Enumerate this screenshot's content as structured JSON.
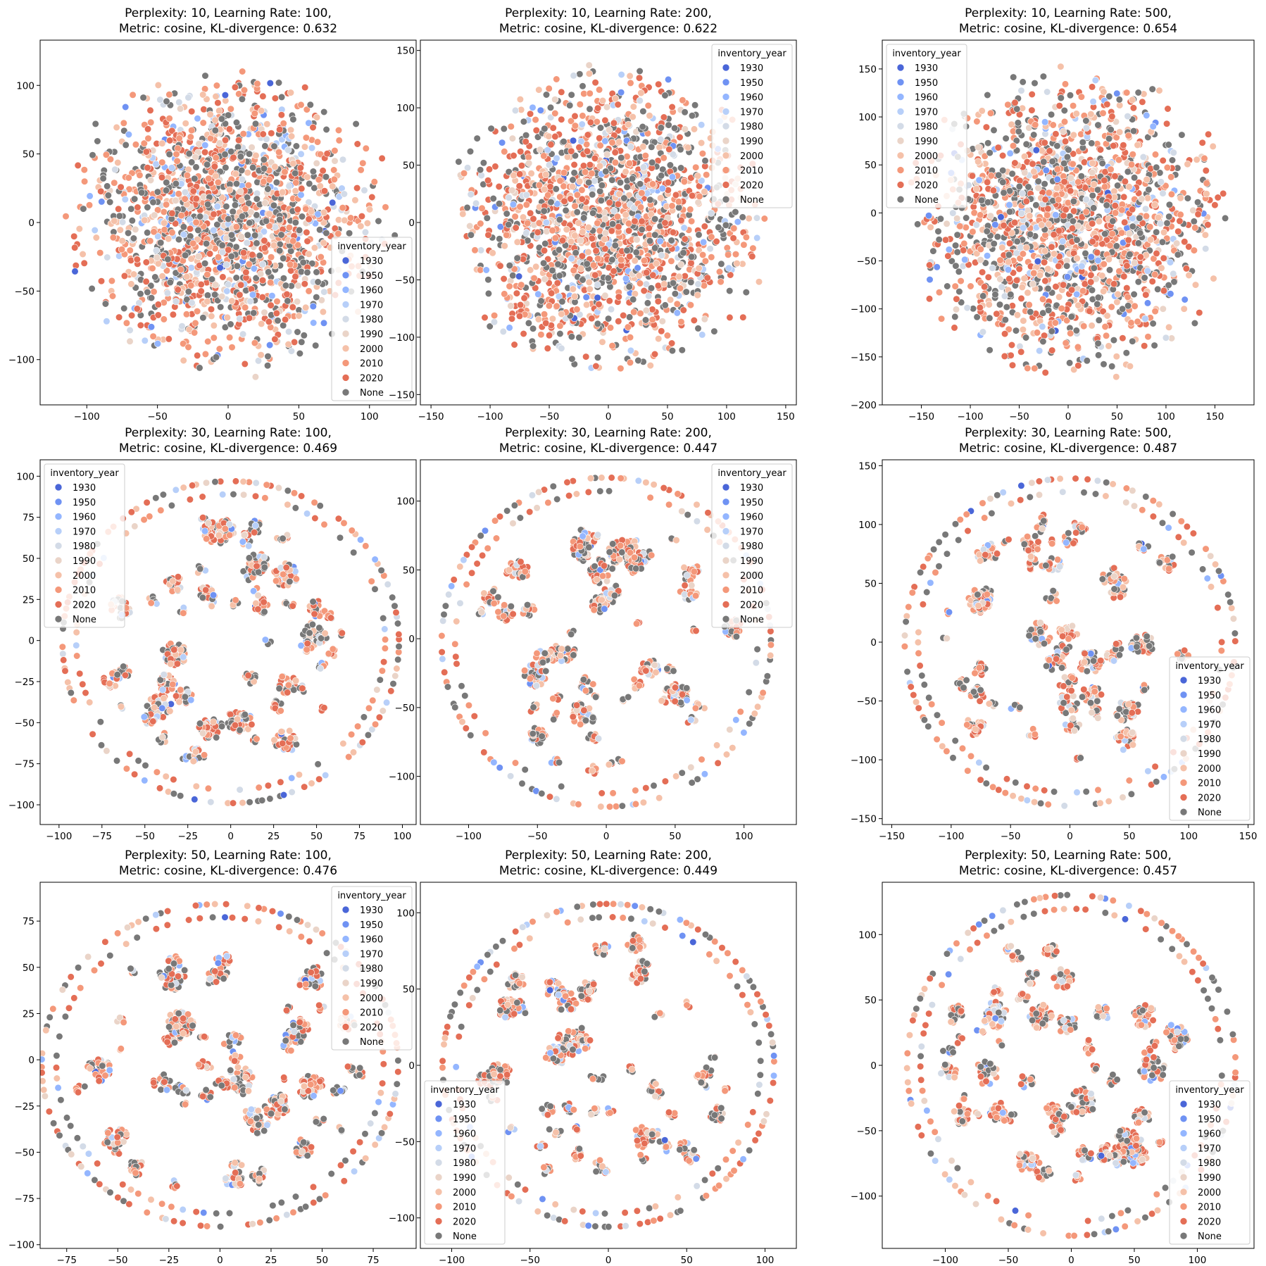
{
  "legend_title": "inventory_year",
  "hue_levels": [
    {
      "label": "1930",
      "color": "#4a66d8"
    },
    {
      "label": "1950",
      "color": "#6f92f3"
    },
    {
      "label": "1960",
      "color": "#94b6ff"
    },
    {
      "label": "1970",
      "color": "#b7cff9"
    },
    {
      "label": "1980",
      "color": "#d3dbe7"
    },
    {
      "label": "1990",
      "color": "#ead4c8"
    },
    {
      "label": "2000",
      "color": "#f5c1a9"
    },
    {
      "label": "2010",
      "color": "#f4987a"
    },
    {
      "label": "2020",
      "color": "#e46e56"
    },
    {
      "label": "None",
      "color": "#787878"
    }
  ],
  "chart_data": [
    {
      "type": "scatter",
      "title": "Perplexity: 10, Learning Rate: 100,\nMetric: cosine,  KL-divergence: 0.632",
      "xlim": [
        -133,
        133
      ],
      "ylim": [
        -133,
        133
      ],
      "xticks": [
        -100,
        -50,
        0,
        50,
        100
      ],
      "yticks": [
        -100,
        -50,
        0,
        50,
        100
      ],
      "radius": 120,
      "legend_placement": "lower-right",
      "hue_weights": [
        0.3,
        1,
        1.5,
        2,
        3,
        3,
        8,
        12,
        13,
        16
      ],
      "grid": false
    },
    {
      "type": "scatter",
      "title": "Perplexity: 10, Learning Rate: 200,\nMetric: cosine,  KL-divergence: 0.622",
      "xlim": [
        -159,
        159
      ],
      "ylim": [
        -159,
        159
      ],
      "xticks": [
        -150,
        -100,
        -50,
        0,
        50,
        100,
        150
      ],
      "yticks": [
        -150,
        -100,
        -50,
        0,
        50,
        100,
        150
      ],
      "radius": 143,
      "legend_placement": "upper-right",
      "hue_weights": [
        0.3,
        1,
        1.5,
        2,
        3,
        3,
        8,
        12,
        13,
        16
      ],
      "grid": false
    },
    {
      "type": "scatter",
      "title": "Perplexity: 10, Learning Rate: 500,\nMetric: cosine,  KL-divergence: 0.654",
      "xlim": [
        -190,
        190
      ],
      "ylim": [
        -200,
        180
      ],
      "xticks": [
        -150,
        -100,
        -50,
        0,
        50,
        100,
        150
      ],
      "yticks": [
        -200,
        -150,
        -100,
        -50,
        0,
        50,
        100,
        150
      ],
      "radius": 172,
      "legend_placement": "upper-left",
      "hue_weights": [
        0.3,
        1,
        1.5,
        2,
        3,
        3,
        8,
        12,
        13,
        16
      ],
      "grid": false
    },
    {
      "type": "scatter",
      "title": "Perplexity: 30, Learning Rate: 100,\nMetric: cosine,  KL-divergence: 0.469",
      "xlim": [
        -111,
        108
      ],
      "ylim": [
        -112,
        110
      ],
      "xticks": [
        -100,
        -75,
        -50,
        -25,
        0,
        25,
        50,
        75,
        100
      ],
      "yticks": [
        -100,
        -75,
        -50,
        -25,
        0,
        25,
        50,
        75,
        100
      ],
      "radius": 100,
      "legend_placement": "upper-left",
      "hue_weights": [
        0.3,
        1,
        1.5,
        2,
        3,
        3,
        8,
        12,
        13,
        16
      ],
      "grid": false
    },
    {
      "type": "scatter",
      "title": "Perplexity: 30, Learning Rate: 200,\nMetric: cosine,  KL-divergence: 0.447",
      "xlim": [
        -135,
        138
      ],
      "ylim": [
        -135,
        130
      ],
      "xticks": [
        -100,
        -50,
        0,
        50,
        100
      ],
      "yticks": [
        -100,
        -50,
        0,
        50,
        100
      ],
      "radius": 122,
      "legend_placement": "upper-right",
      "hue_weights": [
        0.3,
        1,
        1.5,
        2,
        3,
        3,
        8,
        12,
        13,
        16
      ],
      "grid": false
    },
    {
      "type": "scatter",
      "title": "Perplexity: 30, Learning Rate: 500,\nMetric: cosine,  KL-divergence: 0.487",
      "xlim": [
        -158,
        155
      ],
      "ylim": [
        -155,
        155
      ],
      "xticks": [
        -150,
        -100,
        -50,
        0,
        50,
        100,
        150
      ],
      "yticks": [
        -150,
        -100,
        -50,
        0,
        50,
        100,
        150
      ],
      "radius": 142,
      "legend_placement": "lower-right",
      "hue_weights": [
        0.3,
        1,
        1.5,
        2,
        3,
        3,
        8,
        12,
        13,
        16
      ],
      "grid": false
    },
    {
      "type": "scatter",
      "title": "Perplexity: 50, Learning Rate: 100,\nMetric: cosine,  KL-divergence: 0.476",
      "xlim": [
        -88,
        96
      ],
      "ylim": [
        -102,
        96
      ],
      "xticks": [
        -75,
        -50,
        -25,
        0,
        25,
        50,
        75
      ],
      "yticks": [
        -100,
        -75,
        -50,
        -25,
        0,
        25,
        50,
        75
      ],
      "radius": 89,
      "legend_placement": "upper-right",
      "hue_weights": [
        0.3,
        1,
        1.5,
        2,
        3,
        3,
        8,
        12,
        13,
        16
      ],
      "grid": false
    },
    {
      "type": "scatter",
      "title": "Perplexity: 50, Learning Rate: 200,\nMetric: cosine,  KL-divergence: 0.449",
      "xlim": [
        -120,
        120
      ],
      "ylim": [
        -120,
        120
      ],
      "xticks": [
        -100,
        -50,
        0,
        50,
        100
      ],
      "yticks": [
        -100,
        -50,
        0,
        50,
        100
      ],
      "radius": 108,
      "legend_placement": "lower-left",
      "hue_weights": [
        0.3,
        1,
        1.5,
        2,
        3,
        3,
        8,
        12,
        13,
        16
      ],
      "grid": false
    },
    {
      "type": "scatter",
      "title": "Perplexity: 50, Learning Rate: 500,\nMetric: cosine,  KL-divergence: 0.457",
      "xlim": [
        -150,
        145
      ],
      "ylim": [
        -140,
        140
      ],
      "xticks": [
        -100,
        -50,
        0,
        50,
        100
      ],
      "yticks": [
        -100,
        -50,
        0,
        50,
        100
      ],
      "radius": 133,
      "legend_placement": "lower-right",
      "hue_weights": [
        0.3,
        1,
        1.5,
        2,
        3,
        3,
        8,
        12,
        13,
        16
      ],
      "grid": false
    }
  ]
}
